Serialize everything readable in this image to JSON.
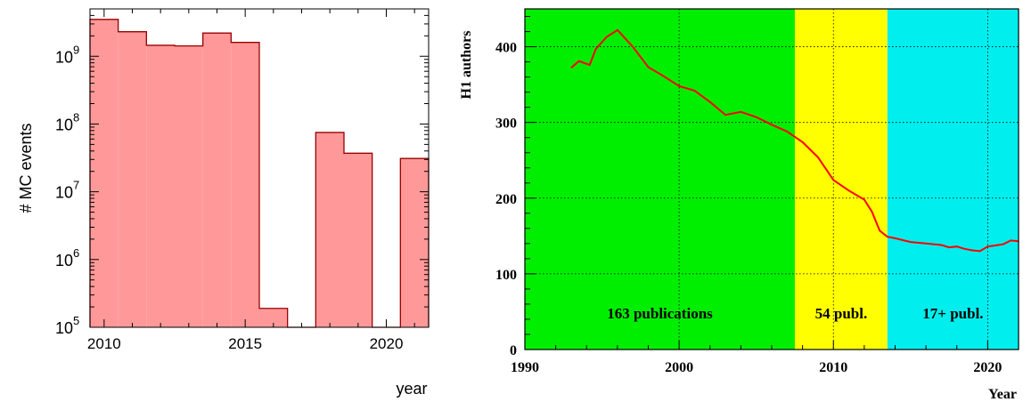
{
  "chart_data": [
    {
      "type": "bar",
      "ylabel": "# MC events",
      "xlabel": "year",
      "scale_y": "log",
      "ylim": [
        100000,
        5000000000
      ],
      "xlim": [
        2009.5,
        2021.5
      ],
      "x_ticks": [
        2010,
        2015,
        2020
      ],
      "y_ticks": [
        {
          "base": "10",
          "exp": "5",
          "value": 100000
        },
        {
          "base": "10",
          "exp": "6",
          "value": 1000000
        },
        {
          "base": "10",
          "exp": "7",
          "value": 10000000
        },
        {
          "base": "10",
          "exp": "8",
          "value": 100000000
        },
        {
          "base": "10",
          "exp": "9",
          "value": 1000000000
        }
      ],
      "bins": [
        {
          "x0": 2009.5,
          "x1": 2010.5,
          "value": 3500000000
        },
        {
          "x0": 2010.5,
          "x1": 2011.5,
          "value": 2300000000
        },
        {
          "x0": 2011.5,
          "x1": 2012.5,
          "value": 1450000000
        },
        {
          "x0": 2012.5,
          "x1": 2013.5,
          "value": 1420000000
        },
        {
          "x0": 2013.5,
          "x1": 2014.5,
          "value": 2200000000
        },
        {
          "x0": 2014.5,
          "x1": 2015.5,
          "value": 1600000000
        },
        {
          "x0": 2015.5,
          "x1": 2016.5,
          "value": 190000
        },
        {
          "x0": 2016.5,
          "x1": 2017.5,
          "value": 100000
        },
        {
          "x0": 2017.5,
          "x1": 2018.5,
          "value": 75000000
        },
        {
          "x0": 2018.5,
          "x1": 2019.5,
          "value": 37000000
        },
        {
          "x0": 2019.5,
          "x1": 2020.5,
          "value": 100000
        },
        {
          "x0": 2020.5,
          "x1": 2021.5,
          "value": 31000000
        }
      ],
      "colors": {
        "fill": "#ff9999",
        "line": "#990000"
      }
    },
    {
      "type": "line",
      "ylabel": "H1 authors",
      "xlabel": "Year",
      "xlim": [
        1990,
        2022
      ],
      "ylim": [
        0,
        450
      ],
      "x_ticks": [
        "1990",
        "2000",
        "2010",
        "2020"
      ],
      "y_ticks": [
        "0",
        "100",
        "200",
        "300",
        "400"
      ],
      "x_tick_values": [
        1990,
        2000,
        2010,
        2020
      ],
      "y_tick_values": [
        0,
        100,
        200,
        300,
        400
      ],
      "grid": true,
      "bands": [
        {
          "x0": 1990,
          "x1": 2007.5,
          "color": "#00ee00",
          "label": "163 publications"
        },
        {
          "x0": 2007.5,
          "x1": 2013.5,
          "color": "#ffff00",
          "label": "54 publ."
        },
        {
          "x0": 2013.5,
          "x1": 2022,
          "color": "#00eeee",
          "label": "17+ publ."
        }
      ],
      "x": [
        1993,
        1993.5,
        1994.2,
        1994.6,
        1995.3,
        1996,
        1997,
        1998,
        1999,
        2000,
        2001,
        2002,
        2003,
        2004,
        2005,
        2006,
        2007,
        2008,
        2009,
        2010,
        2011,
        2012,
        2012.5,
        2013,
        2013.5,
        2014,
        2015,
        2016,
        2017,
        2017.5,
        2018,
        2018.5,
        2019,
        2019.5,
        2020,
        2021,
        2021.5,
        2022
      ],
      "y": [
        372,
        381,
        376,
        397,
        413,
        422,
        400,
        373,
        361,
        348,
        342,
        327,
        310,
        314,
        307,
        297,
        288,
        274,
        254,
        224,
        210,
        198,
        182,
        157,
        149,
        147,
        142,
        140,
        138,
        135,
        136,
        133,
        131,
        130,
        136,
        139,
        144,
        143
      ],
      "colors": {
        "line": "#ff0000"
      }
    }
  ]
}
